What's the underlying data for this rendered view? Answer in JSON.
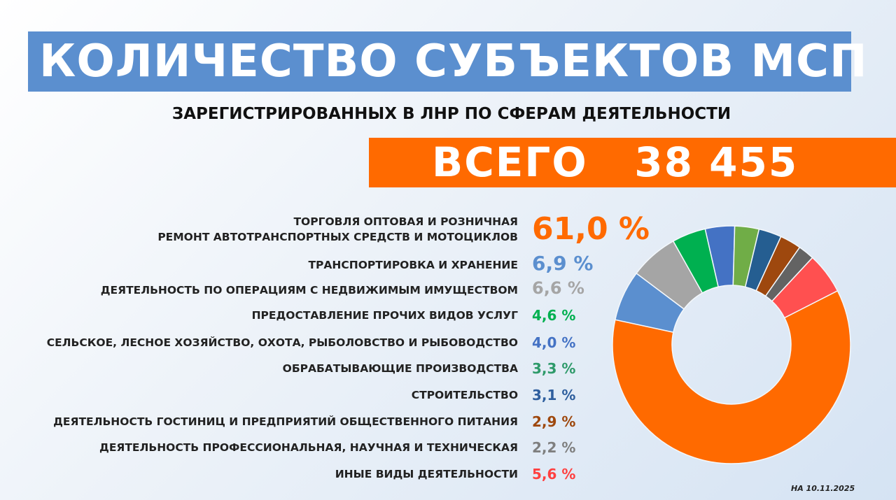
{
  "header": {
    "title": "КОЛИЧЕСТВО СУБЪЕКТОВ МСП",
    "subtitle": "ЗАРЕГИСТРИРОВАННЫХ В ЛНР ПО СФЕРАМ ДЕЯТЕЛЬНОСТИ",
    "total": "ВСЕГО   38 455"
  },
  "date": "НА 10.11.2025",
  "chart_data": {
    "type": "pie",
    "subtype": "donut",
    "title": "",
    "legend": "left",
    "categories": [
      "ТОРГОВЛЯ ОПТОВАЯ И РОЗНИЧНАЯ РЕМОНТ АВТОТРАНСПОРТНЫХ СРЕДСТВ И МОТОЦИКЛОВ",
      "ТРАНСПОРТИРОВКА И ХРАНЕНИЕ",
      "ДЕЯТЕЛЬНОСТЬ ПО ОПЕРАЦИЯМ С НЕДВИЖИМЫМ ИМУЩЕСТВОМ",
      "ПРЕДОСТАВЛЕНИЕ ПРОЧИХ ВИДОВ УСЛУГ",
      "СЕЛЬСКОЕ, ЛЕСНОЕ ХОЗЯЙСТВО, ОХОТА, РЫБОЛОВСТВО И РЫБОВОДСТВО",
      "ОБРАБАТЫВАЮЩИЕ ПРОИЗВОДСТВА",
      "СТРОИТЕЛЬСТВО",
      "ДЕЯТЕЛЬНОСТЬ ГОСТИНИЦ И ПРЕДПРИЯТИЙ ОБЩЕСТВЕННОГО ПИТАНИЯ",
      "ДЕЯТЕЛЬНОСТЬ ПРОФЕССИОНАЛЬНАЯ, НАУЧНАЯ И ТЕХНИЧЕСКАЯ",
      "ИНЫЕ ВИДЫ ДЕЯТЕЛЬНОСТИ"
    ],
    "label_lines": [
      [
        "ТОРГОВЛЯ ОПТОВАЯ И РОЗНИЧНАЯ",
        "РЕМОНТ АВТОТРАНСПОРТНЫХ СРЕДСТВ И МОТОЦИКЛОВ"
      ]
    ],
    "values": [
      61.0,
      6.9,
      6.6,
      4.6,
      4.0,
      3.3,
      3.1,
      2.9,
      2.2,
      5.6
    ],
    "labels": [
      "61,0 %",
      "6,9 %",
      "6,6 %",
      "4,6 %",
      "4,0 %",
      "3,3 %",
      "3,1 %",
      "2,9 %",
      "2,2 %",
      "5,6 %"
    ],
    "colors": [
      "#ff6a00",
      "#5b8fcf",
      "#a5a5a5",
      "#00b050",
      "#4472c4",
      "#70ad47",
      "#255e91",
      "#9e480e",
      "#636363",
      "#ff5050"
    ],
    "label_colors": [
      "#ff6a00",
      "#5b8fcf",
      "#a5a5a5",
      "#00b050",
      "#4472c4",
      "#2e9a6a",
      "#2f5f9e",
      "#9e480e",
      "#7f7f7f",
      "#ff4040"
    ]
  }
}
